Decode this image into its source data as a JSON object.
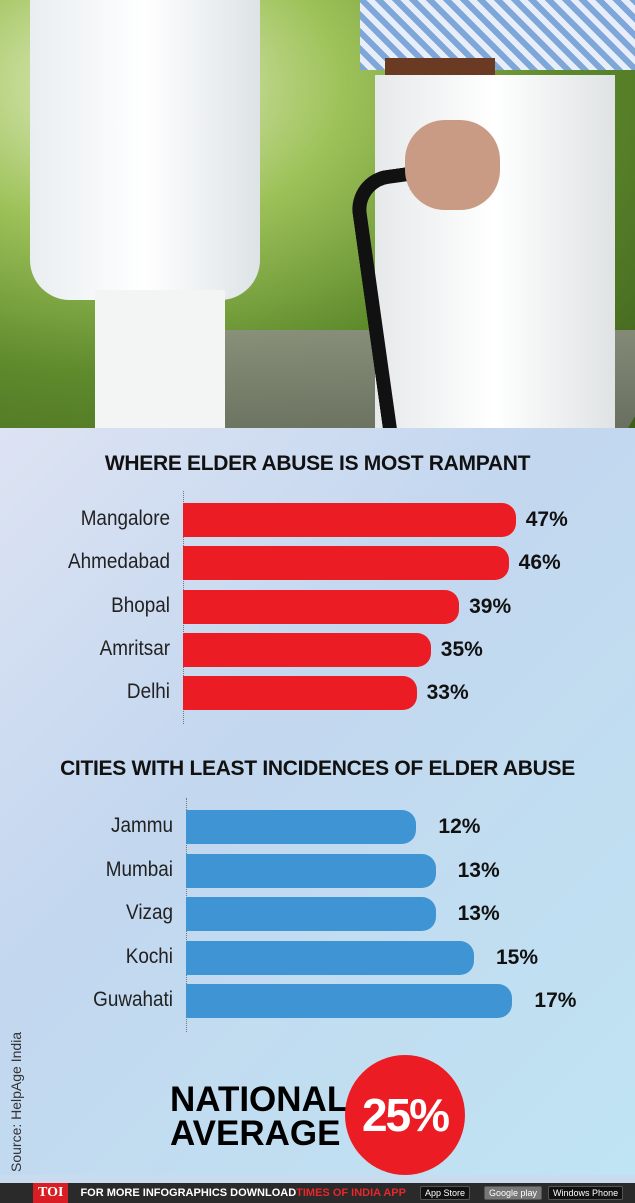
{
  "chart_data": [
    {
      "type": "bar",
      "orientation": "horizontal",
      "title": "WHERE ELDER ABUSE IS MOST RAMPANT",
      "categories": [
        "Mangalore",
        "Ahmedabad",
        "Bhopal",
        "Amritsar",
        "Delhi"
      ],
      "values": [
        47,
        46,
        39,
        35,
        33
      ],
      "labels": [
        "47%",
        "46%",
        "39%",
        "35%",
        "33%"
      ],
      "color": "#ec1c24",
      "unit": "%"
    },
    {
      "type": "bar",
      "orientation": "horizontal",
      "title": "CITIES WITH LEAST INCIDENCES OF ELDER ABUSE",
      "categories": [
        "Jammu",
        "Mumbai",
        "Vizag",
        "Kochi",
        "Guwahati"
      ],
      "values": [
        12,
        13,
        13,
        15,
        17
      ],
      "labels": [
        "12%",
        "13%",
        "13%",
        "15%",
        "17%"
      ],
      "color": "#3f95d3",
      "unit": "%"
    }
  ],
  "national": {
    "line1": "NATIONAL",
    "line2": "AVERAGE",
    "value": "25%"
  },
  "source": "Source: HelpAge India",
  "footer": {
    "brand": "TOI",
    "text": "FOR MORE  INFOGRAPHICS DOWNLOAD ",
    "app": "TIMES OF INDIA  APP",
    "appstore": "App Store",
    "googleplay": "Google play",
    "windows": "Windows Phone"
  }
}
